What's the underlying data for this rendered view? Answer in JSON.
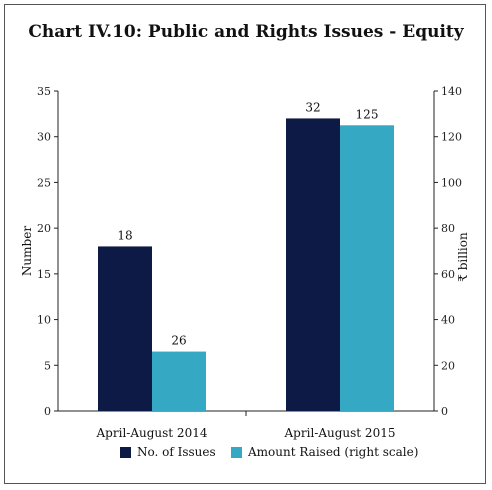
{
  "chart_data": {
    "type": "bar",
    "title": "Chart IV.10: Public and Rights Issues - Equity",
    "categories": [
      "April-August 2014",
      "April-August 2015"
    ],
    "series": [
      {
        "name": "No. of Issues",
        "values": [
          18,
          32
        ],
        "axis": "left",
        "color": "#0c1a45"
      },
      {
        "name": "Amount Raised (right scale)",
        "values": [
          26,
          125
        ],
        "axis": "right",
        "color": "#35a9c4"
      }
    ],
    "ylabel": "Number",
    "y2label": "₹ billion",
    "ylim": [
      0,
      35
    ],
    "y2lim": [
      0,
      140
    ],
    "yticks": [
      0,
      5,
      10,
      15,
      20,
      25,
      30,
      35
    ],
    "y2ticks": [
      0,
      20,
      40,
      60,
      80,
      100,
      120,
      140
    ],
    "grid": false,
    "legend_position": "bottom"
  }
}
